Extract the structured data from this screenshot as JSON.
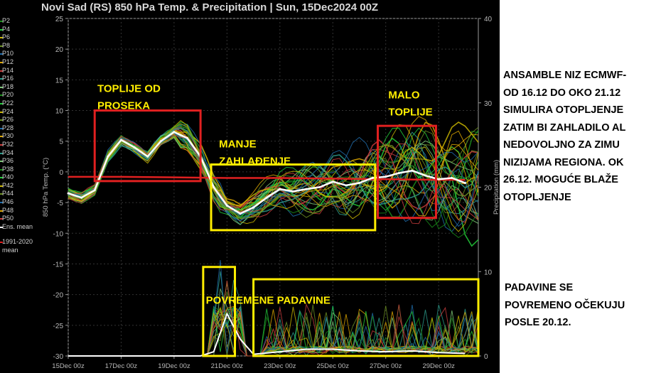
{
  "chart_data": {
    "type": "line",
    "title": "Novi Sad  (RS)  850 hPa Temp. & Precipitation | Sun, 15Dec2024 00Z",
    "ylabel": "850 hPa Temp. (°C)",
    "ylabel_right": "Precipitation (mm)",
    "ylim": [
      -30,
      25
    ],
    "ylim_right": [
      0,
      40
    ],
    "yticks": [
      "25",
      "20",
      "15",
      "10",
      "5",
      "0",
      "-5",
      "-10",
      "-15",
      "-20",
      "-25",
      "-30"
    ],
    "yticks_right": [
      "40",
      "30",
      "20",
      "10",
      "0"
    ],
    "x_ticks": [
      "15Dec 00z",
      "17Dec 00z",
      "19Dec 00z",
      "21Dec 00z",
      "23Dec 00z",
      "25Dec 00z",
      "27Dec 00z",
      "29Dec 00z"
    ],
    "grid": true,
    "legend_items": [
      "P2",
      "P4",
      "P6",
      "P8",
      "P10",
      "P12",
      "P14",
      "P16",
      "P18",
      "P20",
      "P22",
      "P24",
      "P26",
      "P28",
      "P30",
      "P32",
      "P34",
      "P36",
      "P38",
      "P40",
      "P42",
      "P44",
      "P46",
      "P48",
      "P50",
      "Ens. mean",
      "1991-2020",
      "mean"
    ],
    "series": [
      {
        "name": "Ens. mean",
        "x": [
          "15Dec 00z",
          "15Dec 12z",
          "16Dec 00z",
          "16Dec 12z",
          "17Dec 00z",
          "17Dec 12z",
          "18Dec 00z",
          "18Dec 12z",
          "19Dec 00z",
          "19Dec 12z",
          "20Dec 00z",
          "20Dec 12z",
          "21Dec 00z",
          "21Dec 12z",
          "22Dec 00z",
          "22Dec 12z",
          "23Dec 00z",
          "23Dec 12z",
          "24Dec 00z",
          "24Dec 12z",
          "25Dec 00z",
          "25Dec 12z",
          "26Dec 00z",
          "26Dec 12z",
          "27Dec 00z",
          "27Dec 12z",
          "28Dec 00z",
          "28Dec 12z",
          "29Dec 00z",
          "29Dec 12z",
          "30Dec 00z"
        ],
        "values": [
          -3.5,
          -4.2,
          -3.0,
          2.5,
          5.2,
          4.0,
          2.5,
          5.0,
          6.5,
          5.5,
          2.5,
          -2.5,
          -5.5,
          -6.8,
          -5.8,
          -4.2,
          -2.8,
          -3.2,
          -2.8,
          -2.5,
          -1.6,
          -2.2,
          -1.8,
          -1.0,
          -0.8,
          -0.2,
          0.2,
          -0.6,
          -1.2,
          -1.0,
          -1.8
        ]
      },
      {
        "name": "1991-2020 mean",
        "x": [
          "15Dec 00z",
          "17Dec 00z",
          "19Dec 00z",
          "21Dec 00z",
          "23Dec 00z",
          "25Dec 00z",
          "27Dec 00z",
          "29Dec 00z",
          "30Dec 00z"
        ],
        "values": [
          -0.8,
          -0.8,
          -0.9,
          -1.0,
          -1.0,
          -1.1,
          -1.2,
          -1.3,
          -1.3
        ]
      },
      {
        "name": "Precipitation ens. mean",
        "axis": "right",
        "x": [
          "15Dec 00z",
          "20Dec 00z",
          "20Dec 12z",
          "21Dec 00z",
          "21Dec 12z",
          "22Dec 00z",
          "23Dec 00z",
          "24Dec 00z",
          "25Dec 00z",
          "26Dec 00z",
          "27Dec 00z",
          "28Dec 00z",
          "29Dec 00z",
          "30Dec 00z"
        ],
        "values": [
          0,
          0,
          0.5,
          5.0,
          2.0,
          0.2,
          0.5,
          0.8,
          0.8,
          0.6,
          0.5,
          0.6,
          0.4,
          0.3
        ]
      }
    ],
    "annotations": [
      "TOPLIJE OD\nPROSEKA",
      "MANJE\nZAHLAĐENJE",
      "MALO\nTOPLIJE",
      "POVREMENE PADAVINE"
    ],
    "colors": {
      "ens_mean": "#ffffff",
      "climatology": "#e02020",
      "box_red": "#e02020",
      "box_yellow": "#ffee00",
      "annotation_text": "#ffee00",
      "members": [
        "#1a8a1a",
        "#22c93a",
        "#c8b400",
        "#6b8e23",
        "#1e6aa8",
        "#d9a400",
        "#c83c3c",
        "#2b9a8a",
        "#7cc576"
      ]
    }
  },
  "side_notes": {
    "upper": "ANSAMBLE NIZ ECMWF-\nOD 16.12 DO OKO 21.12\nSIMULIRA OTOPLJENJE\nZATIM BI ZAHLADILO AL\nNEDOVOLJNO ZA ZIMU\nNIZIJAMA REGIONA. OK\n26.12. MOGUĆE BLAŽE\nOTOPLJENJE",
    "lower": "PADAVINE SE\nPOVREMENO OČEKUJU\nPOSLE 20.12."
  }
}
